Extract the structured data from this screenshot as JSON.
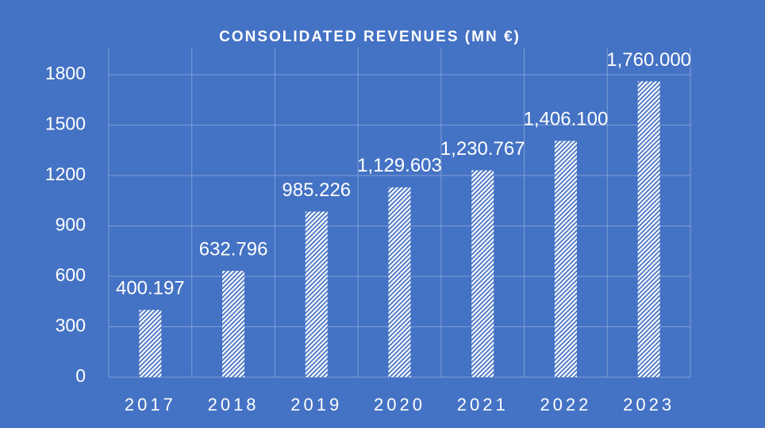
{
  "chart_data": {
    "type": "bar",
    "title": "CONSOLIDATED REVENUES (MN €)",
    "categories": [
      "2017",
      "2018",
      "2019",
      "2020",
      "2021",
      "2022",
      "2023"
    ],
    "values": [
      400.197,
      632.796,
      985.226,
      1129.603,
      1230.767,
      1406.1,
      1760
    ],
    "value_labels": [
      "400.197",
      "632.796",
      "985.226",
      "1,129.603",
      "1,230.767",
      "1,406.100",
      "1,760.000"
    ],
    "color": "#ffffff",
    "ylim": [
      0,
      1800
    ],
    "yticks": [
      0,
      300,
      600,
      900,
      1200,
      1500,
      1800
    ],
    "grid": true
  }
}
